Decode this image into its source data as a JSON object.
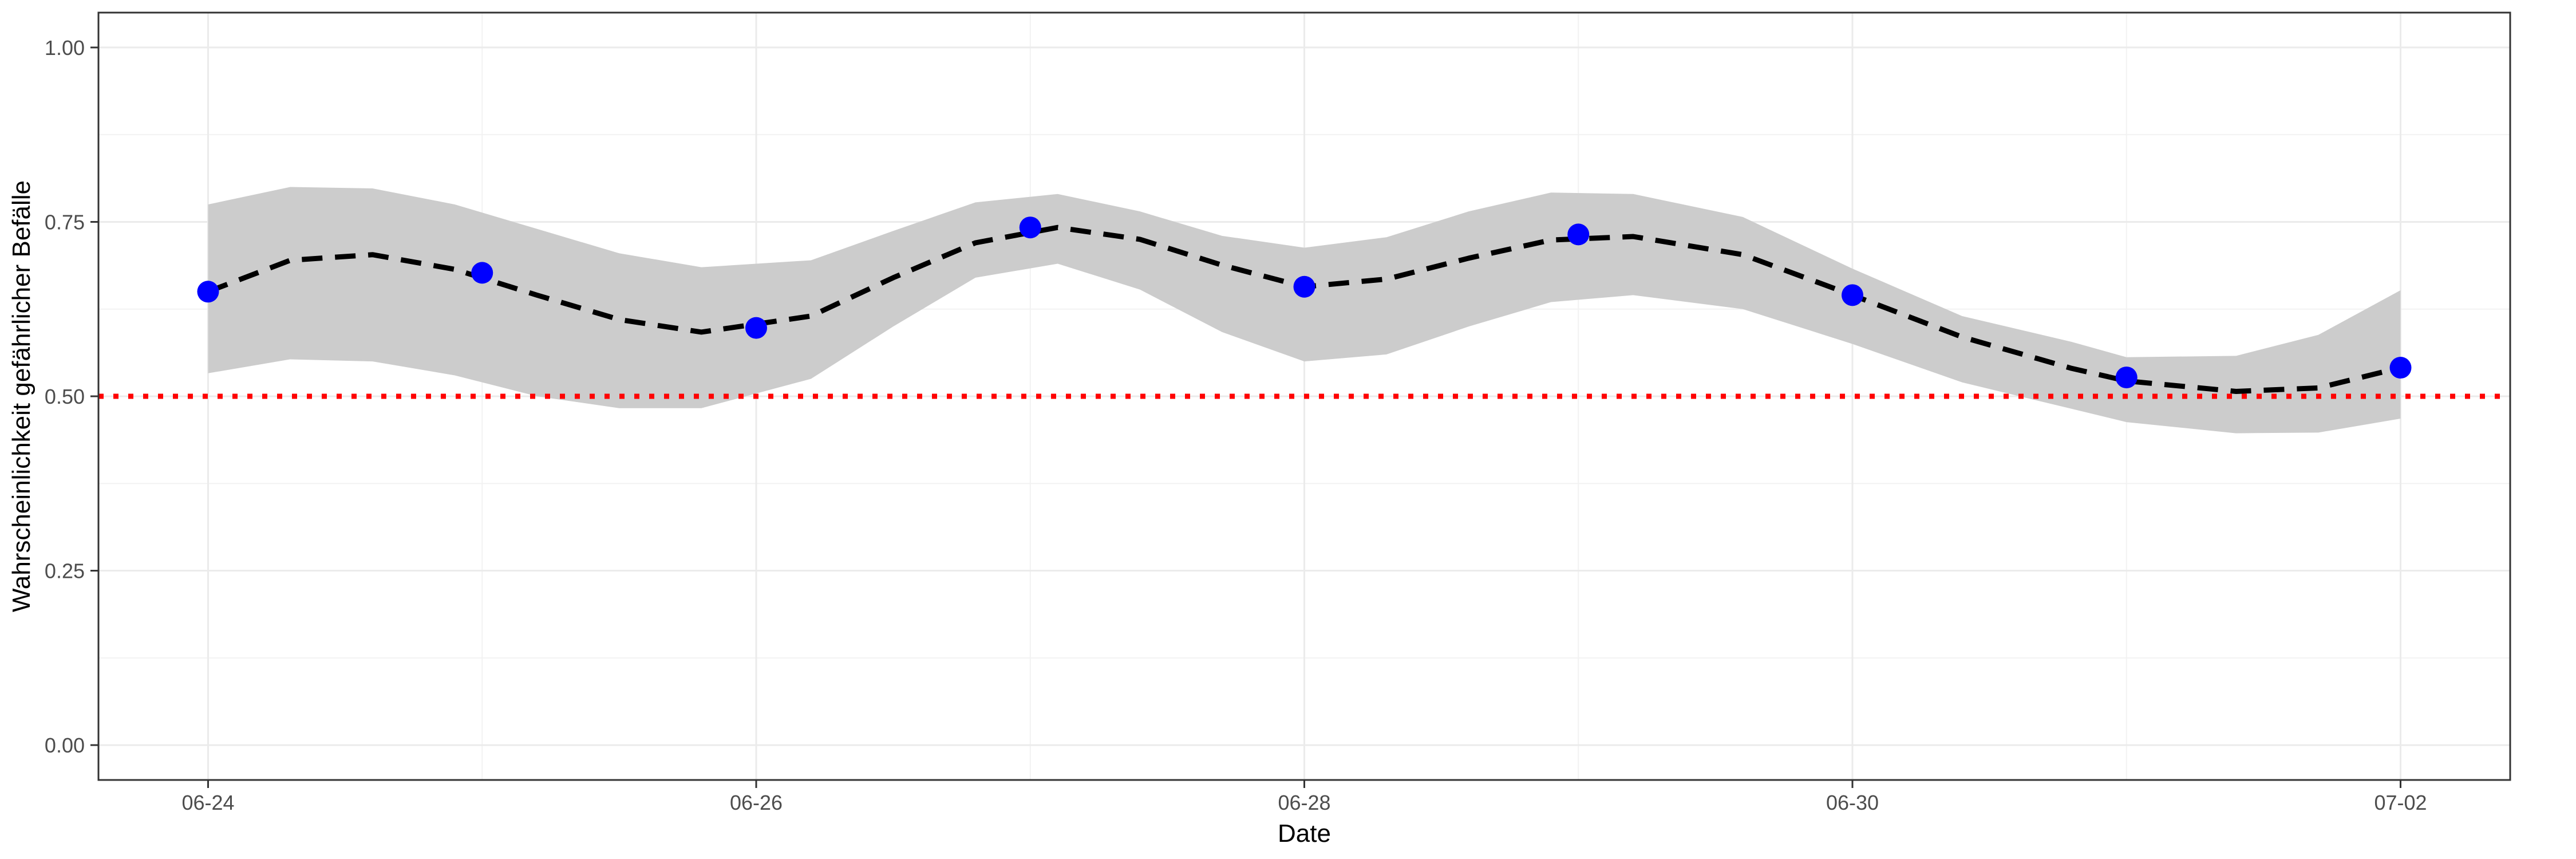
{
  "chart_data": {
    "type": "line",
    "title": "",
    "xlabel": "Date",
    "ylabel": "Wahrscheinlichkeit gefährlicher Befälle",
    "x_tick_labels": [
      "06-24",
      "06-26",
      "06-28",
      "06-30",
      "07-02"
    ],
    "x_tick_days": [
      0,
      2,
      4,
      6,
      8
    ],
    "y_tick_labels": [
      "0.00",
      "0.25",
      "0.50",
      "0.75",
      "1.00"
    ],
    "y_ticks": [
      0,
      0.25,
      0.5,
      0.75,
      1.0
    ],
    "xlim": [
      -0.4,
      8.4
    ],
    "ylim": [
      -0.05,
      1.05
    ],
    "points": {
      "x_days": [
        0,
        1,
        2,
        3,
        4,
        5,
        6,
        7,
        8
      ],
      "values": [
        0.65,
        0.677,
        0.598,
        0.742,
        0.657,
        0.732,
        0.645,
        0.527,
        0.541
      ],
      "color": "#0000ff"
    },
    "smooth": {
      "x_days": [
        0,
        0.3,
        0.6,
        0.9,
        1.2,
        1.5,
        1.8,
        2.2,
        2.5,
        2.8,
        3.1,
        3.4,
        3.7,
        4.0,
        4.3,
        4.6,
        4.9,
        5.2,
        5.6,
        6.0,
        6.4,
        6.8,
        7.0,
        7.4,
        7.7,
        8.0
      ],
      "fit": [
        0.65,
        0.695,
        0.703,
        0.682,
        0.645,
        0.61,
        0.592,
        0.615,
        0.67,
        0.72,
        0.742,
        0.725,
        0.688,
        0.657,
        0.668,
        0.698,
        0.724,
        0.729,
        0.703,
        0.645,
        0.585,
        0.54,
        0.522,
        0.507,
        0.512,
        0.541
      ],
      "upper": [
        0.775,
        0.8,
        0.798,
        0.775,
        0.74,
        0.705,
        0.685,
        0.695,
        0.737,
        0.778,
        0.79,
        0.765,
        0.73,
        0.713,
        0.728,
        0.765,
        0.792,
        0.79,
        0.757,
        0.683,
        0.615,
        0.578,
        0.556,
        0.558,
        0.588,
        0.652
      ],
      "lower": [
        0.533,
        0.553,
        0.55,
        0.53,
        0.5,
        0.483,
        0.483,
        0.525,
        0.6,
        0.67,
        0.69,
        0.653,
        0.592,
        0.55,
        0.56,
        0.6,
        0.635,
        0.645,
        0.625,
        0.575,
        0.52,
        0.482,
        0.463,
        0.447,
        0.448,
        0.468
      ],
      "line_color": "#000000",
      "band_color": "#cccccc"
    },
    "threshold": {
      "value": 0.5,
      "color": "#ff0000"
    },
    "grid": true,
    "legend": "none"
  }
}
